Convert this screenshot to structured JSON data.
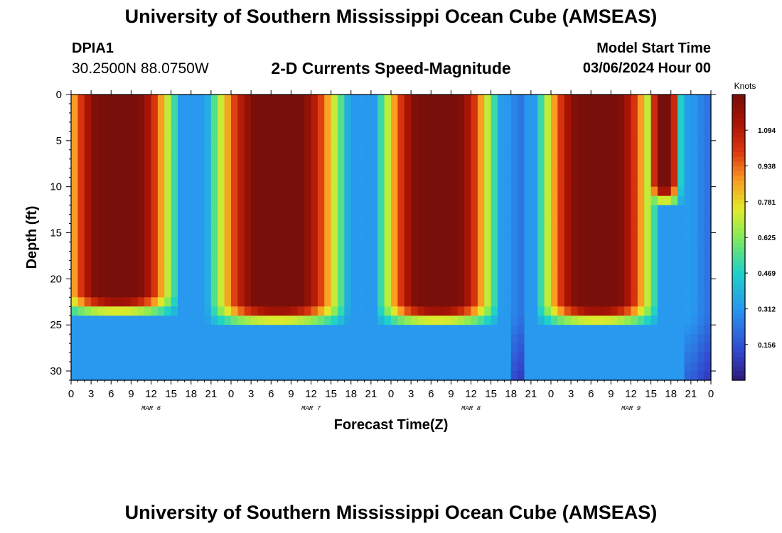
{
  "header": {
    "title": "University of Southern Mississippi Ocean Cube (AMSEAS)",
    "station_id": "DPIA1",
    "station_coords": "30.2500N  88.0750W",
    "plot_title": "2-D Currents Speed-Magnitude",
    "model_start_label": "Model Start Time",
    "model_start_value": "03/06/2024 Hour 00"
  },
  "footer": {
    "title": "University of Southern Mississippi Ocean Cube (AMSEAS)"
  },
  "chart_data": {
    "type": "heatmap",
    "xlabel": "Forecast Time(Z)",
    "ylabel": "Depth (ft)",
    "x_tick_labels": [
      "0",
      "3",
      "6",
      "9",
      "12",
      "15",
      "18",
      "21",
      "0",
      "3",
      "6",
      "9",
      "12",
      "15",
      "18",
      "21",
      "0",
      "3",
      "6",
      "9",
      "12",
      "15",
      "18",
      "21",
      "0",
      "3",
      "6",
      "9",
      "12",
      "15",
      "18",
      "21",
      "0"
    ],
    "date_labels": [
      "MAR 6",
      "MAR 7",
      "MAR 8",
      "MAR 9"
    ],
    "y_tick_labels": [
      "0",
      "5",
      "10",
      "15",
      "20",
      "25",
      "30"
    ],
    "xlim_hours": [
      0,
      96
    ],
    "ylim_ft": [
      0,
      31
    ],
    "colorbar": {
      "label": "Knots",
      "ticks": [
        "0.156",
        "0.312",
        "0.469",
        "0.625",
        "0.781",
        "0.938",
        "1.094"
      ],
      "range": [
        0,
        1.25
      ]
    },
    "max_speed_events": [
      {
        "center_hour": 7,
        "half_width_hours": 7,
        "depth_ft": 22
      },
      {
        "center_hour": 31,
        "half_width_hours": 8,
        "depth_ft": 23
      },
      {
        "center_hour": 55,
        "half_width_hours": 7,
        "depth_ft": 23
      },
      {
        "center_hour": 79,
        "half_width_hours": 7,
        "depth_ft": 23
      },
      {
        "center_hour": 89,
        "half_width_hours": 2,
        "depth_ft": 10
      }
    ],
    "grid": false
  }
}
